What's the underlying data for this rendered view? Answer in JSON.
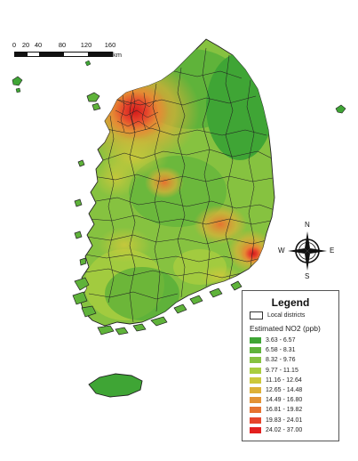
{
  "scalebar": {
    "ticks": [
      "0",
      "20",
      "40",
      "80",
      "120",
      "160"
    ],
    "unit": "km"
  },
  "compass": {
    "north": "N",
    "south": "S",
    "east": "E",
    "west": "W"
  },
  "legend": {
    "title": "Legend",
    "district_label": "Local districts",
    "subtitle": "Estimated NO2 (ppb)",
    "classes": [
      {
        "label": "3.63 - 6.57",
        "color": "#3fa535"
      },
      {
        "label": "6.58 - 8.31",
        "color": "#5fb33a"
      },
      {
        "label": "8.32 - 9.76",
        "color": "#86c240"
      },
      {
        "label": "9.77 - 11.15",
        "color": "#a9cd3e"
      },
      {
        "label": "11.16 - 12.64",
        "color": "#ccc83b"
      },
      {
        "label": "12.65 - 14.48",
        "color": "#ddb038"
      },
      {
        "label": "14.49 - 16.80",
        "color": "#e39235"
      },
      {
        "label": "16.81 - 19.82",
        "color": "#e67330"
      },
      {
        "label": "19.83 - 24.01",
        "color": "#e6452b"
      },
      {
        "label": "24.02 - 37.00",
        "color": "#e3201f"
      }
    ]
  },
  "map": {
    "subject": "South Korea local districts colored by estimated NO2",
    "boundary_color": "#222222"
  }
}
